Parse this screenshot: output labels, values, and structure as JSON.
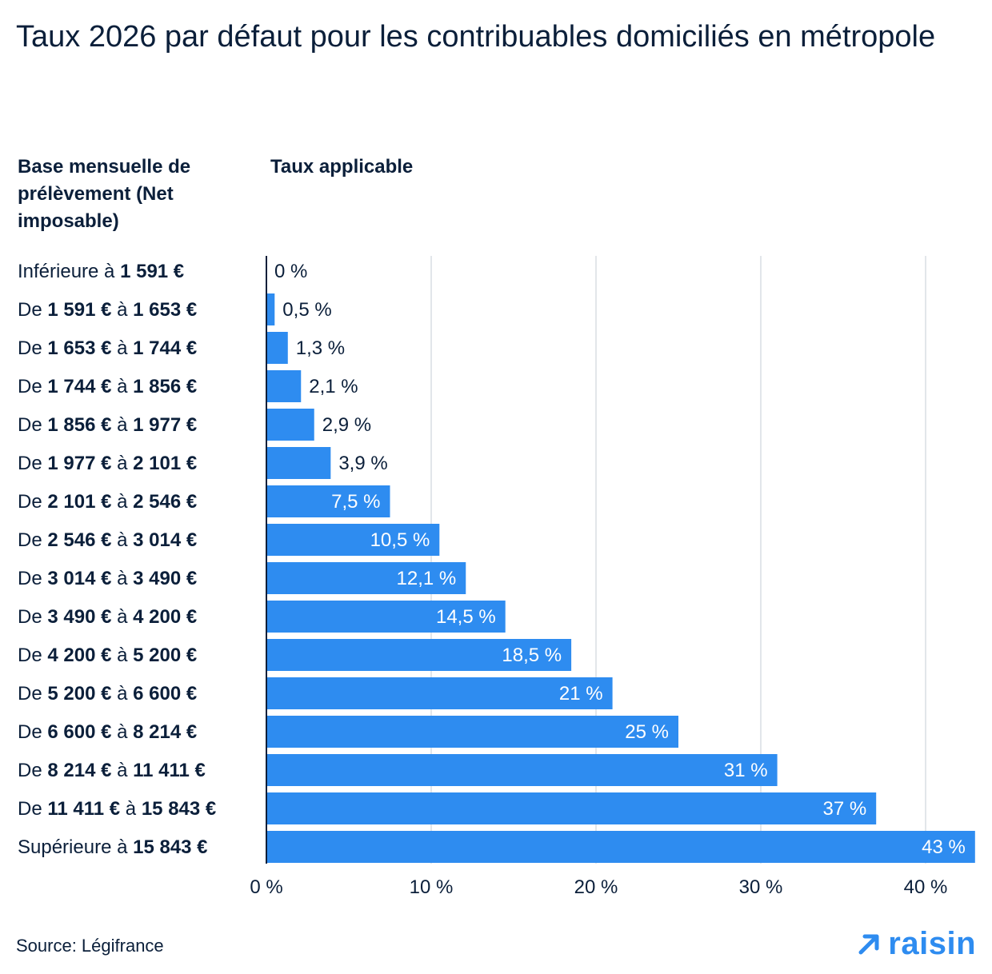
{
  "title": "Taux 2026 par défaut pour les contribuables domiciliés en métropole",
  "columns": {
    "left": "Base mensuelle de prélèvement (Net imposable)",
    "right": "Taux applicable"
  },
  "source": "Source: Légifrance",
  "brand": {
    "name": "raisin",
    "icon": "arrow-up-right-icon",
    "color": "#2e8cf0"
  },
  "colors": {
    "bar": "#2e8cf0",
    "grid": "#d9dde3",
    "axis": "#0b1f3a",
    "text": "#0b1f3a",
    "label_inside": "#ffffff"
  },
  "chart_data": {
    "type": "bar",
    "orientation": "horizontal",
    "categories": [
      {
        "prefix": "Inférieure à ",
        "from": "1 591 €",
        "mid": "",
        "to": ""
      },
      {
        "prefix": "De ",
        "from": "1 591 €",
        "mid": " à ",
        "to": "1 653 €"
      },
      {
        "prefix": "De ",
        "from": "1 653 €",
        "mid": " à ",
        "to": "1 744 €"
      },
      {
        "prefix": "De ",
        "from": "1 744 €",
        "mid": " à ",
        "to": "1 856 €"
      },
      {
        "prefix": "De ",
        "from": "1 856 €",
        "mid": " à ",
        "to": "1 977 €"
      },
      {
        "prefix": "De ",
        "from": "1 977 €",
        "mid": " à ",
        "to": "2 101 €"
      },
      {
        "prefix": "De ",
        "from": "2 101 €",
        "mid": " à ",
        "to": "2 546 €"
      },
      {
        "prefix": "De ",
        "from": "2 546 €",
        "mid": " à ",
        "to": "3 014 €"
      },
      {
        "prefix": "De ",
        "from": "3 014 €",
        "mid": " à ",
        "to": "3 490 €"
      },
      {
        "prefix": "De ",
        "from": "3 490 €",
        "mid": " à ",
        "to": "4 200 €"
      },
      {
        "prefix": "De ",
        "from": "4 200 €",
        "mid": " à ",
        "to": "5 200 €"
      },
      {
        "prefix": "De ",
        "from": "5 200 €",
        "mid": " à ",
        "to": "6 600 €"
      },
      {
        "prefix": "De ",
        "from": "6 600 €",
        "mid": " à ",
        "to": "8 214 €"
      },
      {
        "prefix": "De ",
        "from": "8 214 €",
        "mid": " à ",
        "to": "11 411 €"
      },
      {
        "prefix": "De ",
        "from": "11 411 €",
        "mid": " à ",
        "to": "15 843 €"
      },
      {
        "prefix": "Supérieure à ",
        "from": "15 843 €",
        "mid": "",
        "to": ""
      }
    ],
    "values": [
      0,
      0.5,
      1.3,
      2.1,
      2.9,
      3.9,
      7.5,
      10.5,
      12.1,
      14.5,
      18.5,
      21,
      25,
      31,
      37,
      43
    ],
    "value_labels": [
      "0 %",
      "0,5 %",
      "1,3 %",
      "2,1 %",
      "2,9 %",
      "3,9 %",
      "7,5 %",
      "10,5 %",
      "12,1 %",
      "14,5 %",
      "18,5 %",
      "21 %",
      "25 %",
      "31 %",
      "37 %",
      "43 %"
    ],
    "xlim": [
      0,
      43
    ],
    "xticks": [
      0,
      10,
      20,
      30,
      40
    ],
    "xtick_labels": [
      "0 %",
      "10 %",
      "20 %",
      "30 %",
      "40 %"
    ],
    "grid": true,
    "legend": "none"
  }
}
